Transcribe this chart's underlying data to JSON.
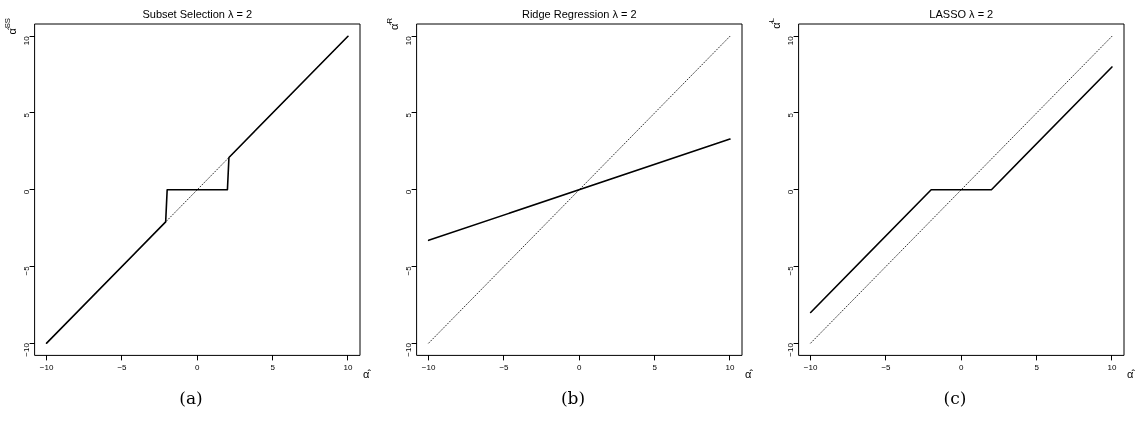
{
  "chart_data": [
    {
      "type": "line",
      "title": "Subset Selection λ = 2",
      "xlabel": "α̂",
      "ylabel": "α̂$^{SS}$",
      "xlim": [
        -10.8,
        10.8
      ],
      "ylim": [
        -10.8,
        10.8
      ],
      "xticks": [
        -10,
        -5,
        0,
        5,
        10
      ],
      "yticks": [
        -10,
        -5,
        0,
        5,
        10
      ],
      "grid": false,
      "legend": false,
      "marker": "none",
      "series": [
        {
          "color": "#000000",
          "line_style": "solid",
          "x": [
            -10,
            -2.1,
            -2,
            2,
            2.1,
            10
          ],
          "values": [
            -10,
            -2.1,
            0,
            0,
            2.1,
            10
          ]
        },
        {
          "color": "#000000",
          "line_style": "dotted",
          "x": [
            -10,
            10
          ],
          "values": [
            -10,
            10
          ]
        }
      ],
      "annotations": [
        "(a)"
      ]
    },
    {
      "type": "line",
      "title": "Ridge Regression λ = 2",
      "xlabel": "α̂",
      "ylabel": "α̂$^{R}$",
      "xlim": [
        -10.8,
        10.8
      ],
      "ylim": [
        -10.8,
        10.8
      ],
      "xticks": [
        -10,
        -5,
        0,
        5,
        10
      ],
      "yticks": [
        -10,
        -5,
        0,
        5,
        10
      ],
      "grid": false,
      "legend": false,
      "marker": "none",
      "series": [
        {
          "color": "#000000",
          "line_style": "solid",
          "x": [
            -10,
            10
          ],
          "values": [
            -3.3,
            3.3
          ]
        },
        {
          "color": "#000000",
          "line_style": "dotted",
          "x": [
            -10,
            10
          ],
          "values": [
            -10,
            10
          ]
        }
      ],
      "annotations": [
        "(b)"
      ]
    },
    {
      "type": "line",
      "title": "LASSO λ = 2",
      "xlabel": "α̂",
      "ylabel": "α̂$^{L}$",
      "xlim": [
        -10.8,
        10.8
      ],
      "ylim": [
        -10.8,
        10.8
      ],
      "xticks": [
        -10,
        -5,
        0,
        5,
        10
      ],
      "yticks": [
        -10,
        -5,
        0,
        5,
        10
      ],
      "grid": false,
      "legend": false,
      "marker": "none",
      "series": [
        {
          "color": "#000000",
          "line_style": "solid",
          "x": [
            -10,
            -2,
            2,
            10
          ],
          "values": [
            -8,
            0,
            0,
            8
          ]
        },
        {
          "color": "#000000",
          "line_style": "dotted",
          "x": [
            -10,
            10
          ],
          "values": [
            -10,
            10
          ]
        }
      ],
      "annotations": [
        "(c)"
      ]
    }
  ]
}
